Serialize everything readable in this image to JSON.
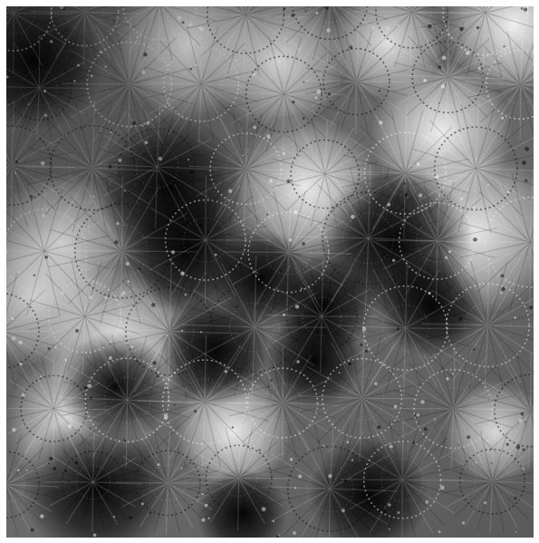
{
  "image": {
    "description_icon": "fractal-tiling-pattern-icon",
    "palette": {
      "background": "#ffffff",
      "dark": "#050505",
      "mid": "#6b6b6b",
      "light": "#f2f2f2"
    }
  }
}
